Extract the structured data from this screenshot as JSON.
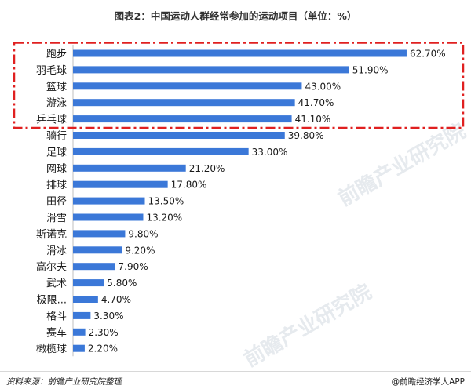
{
  "title": "图表2：中国运动人群经常参加的运动项目（单位：%）",
  "source": "资料来源：前瞻产业研究院整理",
  "brand": "@前瞻经济学人APP",
  "watermark": "前瞻产业研究院",
  "colors": {
    "bar": "#3b78d8",
    "highlight": "#e02020"
  },
  "chart_data": {
    "type": "bar",
    "orientation": "horizontal",
    "categories": [
      "跑步",
      "羽毛球",
      "篮球",
      "游泳",
      "乒乓球",
      "骑行",
      "足球",
      "网球",
      "排球",
      "田径",
      "滑雪",
      "斯诺克",
      "滑冰",
      "高尔夫",
      "武术",
      "极限...",
      "格斗",
      "赛车",
      "橄榄球"
    ],
    "values": [
      62.7,
      51.9,
      43.0,
      41.7,
      41.1,
      39.8,
      33.0,
      21.2,
      17.8,
      13.5,
      13.2,
      9.8,
      9.2,
      7.9,
      5.8,
      4.7,
      3.3,
      2.3,
      2.2
    ],
    "value_labels": [
      "62.70%",
      "51.90%",
      "43.00%",
      "41.70%",
      "41.10%",
      "39.80%",
      "33.00%",
      "21.20%",
      "17.80%",
      "13.50%",
      "13.20%",
      "9.80%",
      "9.20%",
      "7.90%",
      "5.80%",
      "4.70%",
      "3.30%",
      "2.30%",
      "2.20%"
    ],
    "highlight_top": 5,
    "xlim": [
      0,
      63
    ]
  }
}
